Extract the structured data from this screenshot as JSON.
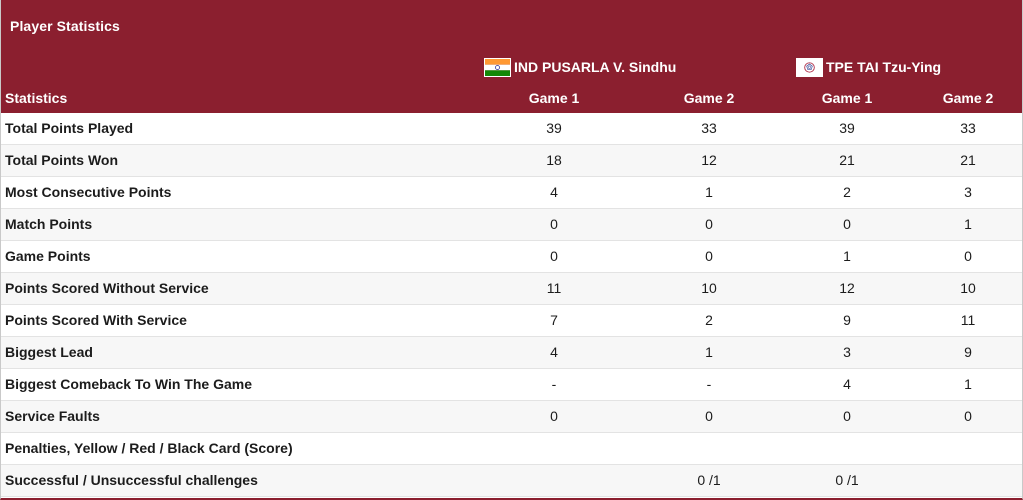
{
  "panel": {
    "title": "Player Statistics",
    "statistics_header": "Statistics"
  },
  "players": [
    {
      "name": "IND PUSARLA V. Sindhu",
      "flag_icon": "india-flag-icon"
    },
    {
      "name": "TPE TAI Tzu-Ying",
      "flag_icon": "chinese-taipei-flag-icon"
    }
  ],
  "columns": [
    "Game 1",
    "Game 2",
    "Game 1",
    "Game 2"
  ],
  "rows": [
    {
      "label": "Total Points Played",
      "values": [
        "39",
        "33",
        "39",
        "33"
      ]
    },
    {
      "label": "Total Points Won",
      "values": [
        "18",
        "12",
        "21",
        "21"
      ]
    },
    {
      "label": "Most Consecutive Points",
      "values": [
        "4",
        "1",
        "2",
        "3"
      ]
    },
    {
      "label": "Match Points",
      "values": [
        "0",
        "0",
        "0",
        "1"
      ]
    },
    {
      "label": "Game Points",
      "values": [
        "0",
        "0",
        "1",
        "0"
      ]
    },
    {
      "label": "Points Scored Without Service",
      "values": [
        "11",
        "10",
        "12",
        "10"
      ]
    },
    {
      "label": "Points Scored With Service",
      "values": [
        "7",
        "2",
        "9",
        "11"
      ]
    },
    {
      "label": "Biggest Lead",
      "values": [
        "4",
        "1",
        "3",
        "9"
      ]
    },
    {
      "label": "Biggest Comeback To Win The Game",
      "values": [
        "-",
        "-",
        "4",
        "1"
      ]
    },
    {
      "label": "Service Faults",
      "values": [
        "0",
        "0",
        "0",
        "0"
      ]
    },
    {
      "label": "Penalties, Yellow / Red / Black Card (Score)",
      "values": [
        "",
        "",
        "",
        ""
      ]
    },
    {
      "label": "Successful / Unsuccessful challenges",
      "values": [
        "",
        "0 /1",
        "0 /1",
        ""
      ]
    }
  ],
  "colors": {
    "header_bg": "#8b1f2f",
    "header_text": "#ffffff",
    "row_alt_bg": "#f7f7f7",
    "divider": "#e3e3e3"
  }
}
